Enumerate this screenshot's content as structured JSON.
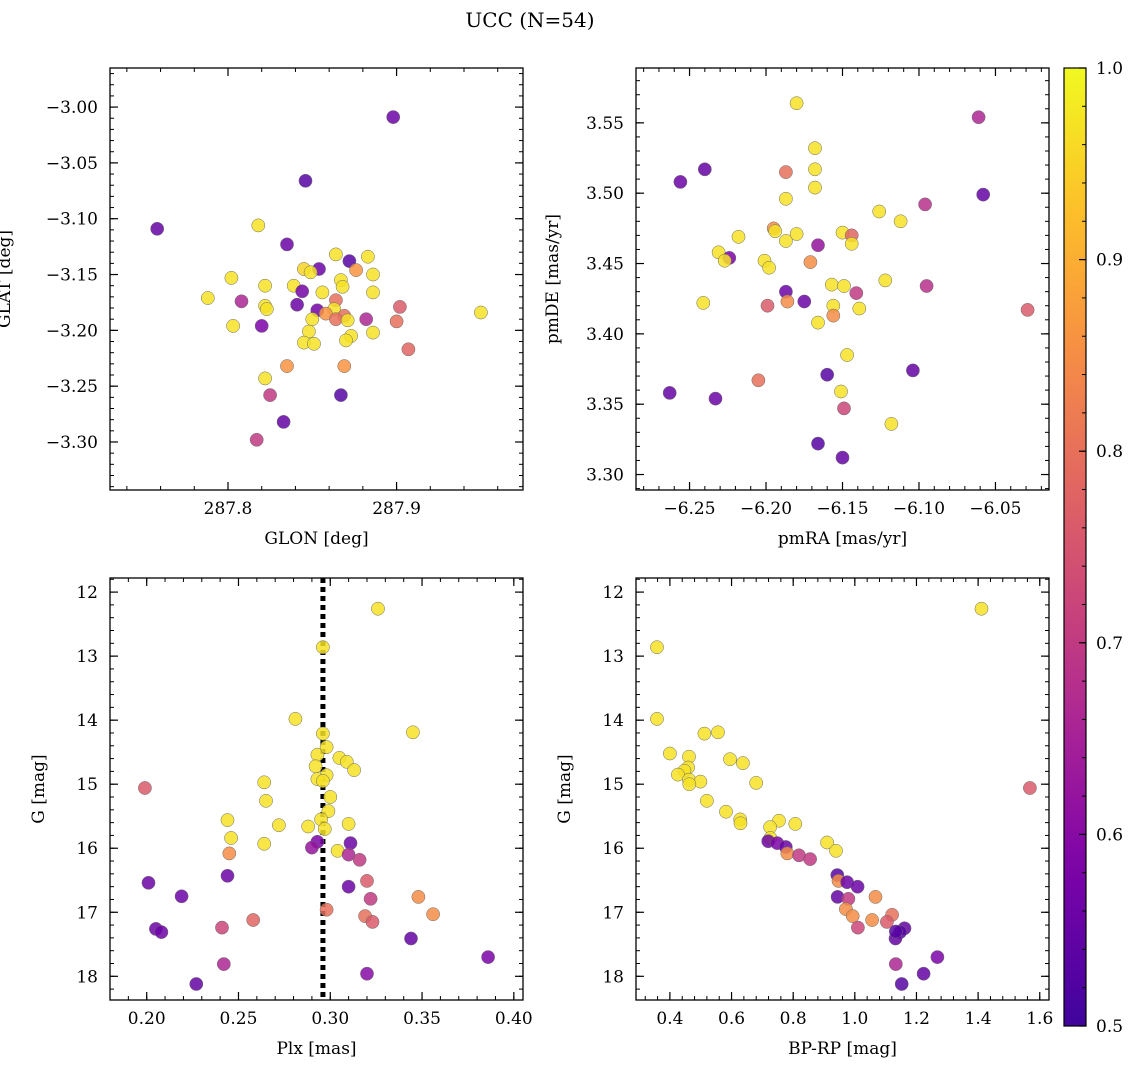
{
  "suptitle": "UCC (N=54)",
  "colormap": {
    "name": "plasma",
    "min": 0.5,
    "max": 1.0,
    "ticks": [
      "0.5",
      "0.6",
      "0.7",
      "0.8",
      "0.9",
      "1.0"
    ]
  },
  "chart_data": [
    {
      "type": "scatter",
      "xlabel": "GLON [deg]",
      "ylabel": "GLAT [deg]",
      "xlim": [
        287.73,
        287.975
      ],
      "ylim": [
        -3.343,
        -2.965
      ],
      "y_inverted": false,
      "xticks": [
        "287.8",
        "287.9"
      ],
      "xtick_values": [
        287.8,
        287.9
      ],
      "yticks": [
        "−3.00",
        "−3.05",
        "−3.10",
        "−3.15",
        "−3.20",
        "−3.25",
        "−3.30"
      ],
      "ytick_values": [
        -3.0,
        -3.05,
        -3.1,
        -3.15,
        -3.2,
        -3.25,
        -3.3
      ],
      "points": [
        [
          287.898,
          -3.009,
          0.56
        ],
        [
          287.846,
          -3.066,
          0.53
        ],
        [
          287.758,
          -3.109,
          0.55
        ],
        [
          287.818,
          -3.106,
          0.97
        ],
        [
          287.835,
          -3.123,
          0.56
        ],
        [
          287.864,
          -3.132,
          0.97
        ],
        [
          287.883,
          -3.134,
          0.97
        ],
        [
          287.872,
          -3.138,
          0.53
        ],
        [
          287.854,
          -3.145,
          0.56
        ],
        [
          287.845,
          -3.145,
          0.95
        ],
        [
          287.849,
          -3.148,
          0.97
        ],
        [
          287.886,
          -3.15,
          0.97
        ],
        [
          287.802,
          -3.153,
          0.97
        ],
        [
          287.867,
          -3.155,
          0.97
        ],
        [
          287.822,
          -3.16,
          0.97
        ],
        [
          287.839,
          -3.16,
          0.97
        ],
        [
          287.868,
          -3.161,
          0.97
        ],
        [
          287.844,
          -3.165,
          0.57
        ],
        [
          287.856,
          -3.166,
          0.97
        ],
        [
          287.886,
          -3.166,
          0.97
        ],
        [
          287.788,
          -3.171,
          0.97
        ],
        [
          287.876,
          -3.146,
          0.86
        ],
        [
          287.864,
          -3.173,
          0.8
        ],
        [
          287.808,
          -3.174,
          0.66
        ],
        [
          287.841,
          -3.177,
          0.56
        ],
        [
          287.822,
          -3.178,
          0.97
        ],
        [
          287.902,
          -3.179,
          0.76
        ],
        [
          287.863,
          -3.181,
          0.97
        ],
        [
          287.823,
          -3.181,
          0.97
        ],
        [
          287.853,
          -3.182,
          0.57
        ],
        [
          287.858,
          -3.185,
          0.86
        ],
        [
          287.95,
          -3.184,
          0.97
        ],
        [
          287.869,
          -3.187,
          0.8
        ],
        [
          287.864,
          -3.19,
          0.8
        ],
        [
          287.882,
          -3.19,
          0.66
        ],
        [
          287.871,
          -3.191,
          0.97
        ],
        [
          287.9,
          -3.192,
          0.8
        ],
        [
          287.803,
          -3.196,
          0.97
        ],
        [
          287.82,
          -3.196,
          0.58
        ],
        [
          287.848,
          -3.201,
          0.97
        ],
        [
          287.886,
          -3.202,
          0.97
        ],
        [
          287.873,
          -3.205,
          0.97
        ],
        [
          287.87,
          -3.209,
          0.97
        ],
        [
          287.845,
          -3.211,
          0.97
        ],
        [
          287.851,
          -3.212,
          0.97
        ],
        [
          287.907,
          -3.217,
          0.78
        ],
        [
          287.835,
          -3.232,
          0.86
        ],
        [
          287.869,
          -3.232,
          0.86
        ],
        [
          287.822,
          -3.243,
          0.97
        ],
        [
          287.867,
          -3.258,
          0.53
        ],
        [
          287.825,
          -3.258,
          0.7
        ],
        [
          287.833,
          -3.282,
          0.55
        ],
        [
          287.817,
          -3.298,
          0.7
        ],
        [
          287.85,
          -3.19,
          0.97
        ]
      ]
    },
    {
      "type": "scatter",
      "xlabel": "pmRA [mas/yr]",
      "ylabel": "pmDE [mas/yr]",
      "xlim": [
        -6.285,
        -6.015
      ],
      "ylim": [
        3.289,
        3.589
      ],
      "y_inverted": false,
      "xticks": [
        "−6.25",
        "−6.20",
        "−6.15",
        "−6.10",
        "−6.05"
      ],
      "xtick_values": [
        -6.25,
        -6.2,
        -6.15,
        -6.1,
        -6.05
      ],
      "yticks": [
        "3.30",
        "3.35",
        "3.40",
        "3.45",
        "3.50",
        "3.55"
      ],
      "ytick_values": [
        3.3,
        3.35,
        3.4,
        3.45,
        3.5,
        3.55
      ],
      "points": [
        [
          -6.18,
          3.564,
          0.97
        ],
        [
          -6.061,
          3.554,
          0.66
        ],
        [
          -6.168,
          3.532,
          0.97
        ],
        [
          -6.24,
          3.517,
          0.55
        ],
        [
          -6.168,
          3.517,
          0.97
        ],
        [
          -6.187,
          3.515,
          0.8
        ],
        [
          -6.256,
          3.508,
          0.56
        ],
        [
          -6.168,
          3.504,
          0.97
        ],
        [
          -6.058,
          3.499,
          0.55
        ],
        [
          -6.187,
          3.496,
          0.97
        ],
        [
          -6.096,
          3.492,
          0.68
        ],
        [
          -6.126,
          3.487,
          0.97
        ],
        [
          -6.112,
          3.48,
          0.97
        ],
        [
          -6.195,
          3.475,
          0.85
        ],
        [
          -6.194,
          3.473,
          0.97
        ],
        [
          -6.18,
          3.471,
          0.97
        ],
        [
          -6.15,
          3.472,
          0.97
        ],
        [
          -6.144,
          3.47,
          0.78
        ],
        [
          -6.218,
          3.469,
          0.97
        ],
        [
          -6.187,
          3.466,
          0.97
        ],
        [
          -6.166,
          3.463,
          0.62
        ],
        [
          -6.144,
          3.464,
          0.97
        ],
        [
          -6.231,
          3.458,
          0.97
        ],
        [
          -6.224,
          3.454,
          0.58
        ],
        [
          -6.227,
          3.452,
          0.97
        ],
        [
          -6.201,
          3.452,
          0.97
        ],
        [
          -6.198,
          3.447,
          0.97
        ],
        [
          -6.171,
          3.451,
          0.85
        ],
        [
          -6.157,
          3.435,
          0.97
        ],
        [
          -6.122,
          3.438,
          0.97
        ],
        [
          -6.149,
          3.434,
          0.97
        ],
        [
          -6.095,
          3.434,
          0.68
        ],
        [
          -6.187,
          3.43,
          0.56
        ],
        [
          -6.141,
          3.429,
          0.7
        ],
        [
          -6.175,
          3.423,
          0.56
        ],
        [
          -6.241,
          3.422,
          0.97
        ],
        [
          -6.186,
          3.423,
          0.85
        ],
        [
          -6.199,
          3.42,
          0.76
        ],
        [
          -6.156,
          3.42,
          0.97
        ],
        [
          -6.029,
          3.417,
          0.76
        ],
        [
          -6.139,
          3.418,
          0.97
        ],
        [
          -6.156,
          3.413,
          0.85
        ],
        [
          -6.166,
          3.408,
          0.97
        ],
        [
          -6.147,
          3.385,
          0.97
        ],
        [
          -6.104,
          3.374,
          0.55
        ],
        [
          -6.16,
          3.371,
          0.53
        ],
        [
          -6.205,
          3.367,
          0.8
        ],
        [
          -6.151,
          3.359,
          0.97
        ],
        [
          -6.263,
          3.358,
          0.55
        ],
        [
          -6.233,
          3.354,
          0.56
        ],
        [
          -6.149,
          3.347,
          0.72
        ],
        [
          -6.118,
          3.336,
          0.97
        ],
        [
          -6.166,
          3.322,
          0.53
        ],
        [
          -6.15,
          3.312,
          0.55
        ]
      ]
    },
    {
      "type": "scatter",
      "xlabel": "Plx [mas]",
      "ylabel": "G [mag]",
      "xlim": [
        0.18,
        0.405
      ],
      "ylim": [
        11.78,
        18.37
      ],
      "y_inverted": true,
      "xticks": [
        "0.20",
        "0.25",
        "0.30",
        "0.35",
        "0.40"
      ],
      "xtick_values": [
        0.2,
        0.25,
        0.3,
        0.35,
        0.4
      ],
      "yticks": [
        "12",
        "13",
        "14",
        "15",
        "16",
        "17",
        "18"
      ],
      "ytick_values": [
        12,
        13,
        14,
        15,
        16,
        17,
        18
      ],
      "vline": 0.296,
      "points": [
        [
          0.326,
          12.26,
          0.97
        ],
        [
          0.296,
          12.86,
          0.97
        ],
        [
          0.281,
          13.98,
          0.97
        ],
        [
          0.345,
          14.19,
          0.97
        ],
        [
          0.296,
          14.21,
          0.97
        ],
        [
          0.293,
          14.54,
          0.97
        ],
        [
          0.305,
          14.59,
          0.97
        ],
        [
          0.309,
          14.65,
          0.97
        ],
        [
          0.292,
          14.72,
          0.97
        ],
        [
          0.313,
          14.78,
          0.97
        ],
        [
          0.298,
          14.86,
          0.97
        ],
        [
          0.293,
          14.92,
          0.97
        ],
        [
          0.296,
          14.95,
          0.97
        ],
        [
          0.264,
          14.97,
          0.97
        ],
        [
          0.199,
          15.06,
          0.76
        ],
        [
          0.299,
          15.42,
          0.97
        ],
        [
          0.295,
          15.55,
          0.97
        ],
        [
          0.244,
          15.56,
          0.97
        ],
        [
          0.31,
          15.62,
          0.97
        ],
        [
          0.265,
          15.26,
          0.97
        ],
        [
          0.272,
          15.64,
          0.97
        ],
        [
          0.288,
          15.66,
          0.97
        ],
        [
          0.246,
          15.84,
          0.97
        ],
        [
          0.293,
          15.9,
          0.58
        ],
        [
          0.311,
          15.92,
          0.56
        ],
        [
          0.264,
          15.93,
          0.97
        ],
        [
          0.29,
          15.99,
          0.62
        ],
        [
          0.304,
          16.04,
          0.97
        ],
        [
          0.245,
          16.08,
          0.85
        ],
        [
          0.31,
          16.1,
          0.66
        ],
        [
          0.316,
          16.18,
          0.7
        ],
        [
          0.244,
          16.43,
          0.56
        ],
        [
          0.32,
          16.51,
          0.76
        ],
        [
          0.201,
          16.54,
          0.56
        ],
        [
          0.31,
          16.6,
          0.56
        ],
        [
          0.219,
          16.75,
          0.56
        ],
        [
          0.348,
          16.76,
          0.85
        ],
        [
          0.322,
          16.79,
          0.7
        ],
        [
          0.298,
          16.96,
          0.8
        ],
        [
          0.356,
          17.03,
          0.85
        ],
        [
          0.319,
          17.06,
          0.8
        ],
        [
          0.258,
          17.12,
          0.78
        ],
        [
          0.323,
          17.15,
          0.76
        ],
        [
          0.241,
          17.24,
          0.72
        ],
        [
          0.205,
          17.26,
          0.56
        ],
        [
          0.208,
          17.31,
          0.56
        ],
        [
          0.344,
          17.41,
          0.55
        ],
        [
          0.386,
          17.7,
          0.58
        ],
        [
          0.242,
          17.81,
          0.66
        ],
        [
          0.32,
          17.96,
          0.6
        ],
        [
          0.227,
          18.12,
          0.55
        ],
        [
          0.298,
          14.42,
          0.97
        ],
        [
          0.3,
          15.2,
          0.97
        ],
        [
          0.297,
          15.7,
          0.97
        ]
      ]
    },
    {
      "type": "scatter",
      "xlabel": "BP-RP [mag]",
      "ylabel": "G [mag]",
      "xlim": [
        0.29,
        1.63
      ],
      "ylim": [
        11.78,
        18.37
      ],
      "y_inverted": true,
      "xticks": [
        "0.4",
        "0.6",
        "0.8",
        "1.0",
        "1.2",
        "1.4",
        "1.6"
      ],
      "xtick_values": [
        0.4,
        0.6,
        0.8,
        1.0,
        1.2,
        1.4,
        1.6
      ],
      "yticks": [
        "12",
        "13",
        "14",
        "15",
        "16",
        "17",
        "18"
      ],
      "ytick_values": [
        12,
        13,
        14,
        15,
        16,
        17,
        18
      ],
      "points": [
        [
          1.411,
          12.26,
          0.97
        ],
        [
          0.358,
          12.86,
          0.97
        ],
        [
          0.358,
          13.98,
          0.97
        ],
        [
          0.556,
          14.19,
          0.97
        ],
        [
          0.512,
          14.21,
          0.97
        ],
        [
          0.4,
          14.52,
          0.97
        ],
        [
          0.462,
          14.57,
          0.97
        ],
        [
          0.595,
          14.61,
          0.97
        ],
        [
          0.637,
          14.67,
          0.97
        ],
        [
          0.459,
          14.74,
          0.97
        ],
        [
          0.447,
          14.79,
          0.97
        ],
        [
          0.426,
          14.85,
          0.97
        ],
        [
          0.462,
          14.93,
          0.97
        ],
        [
          0.499,
          14.96,
          0.97
        ],
        [
          0.68,
          14.98,
          0.97
        ],
        [
          0.463,
          15.0,
          0.97
        ],
        [
          1.568,
          15.06,
          0.76
        ],
        [
          0.52,
          15.26,
          0.97
        ],
        [
          0.582,
          15.43,
          0.97
        ],
        [
          0.628,
          15.55,
          0.97
        ],
        [
          0.754,
          15.57,
          0.97
        ],
        [
          0.629,
          15.61,
          0.97
        ],
        [
          0.807,
          15.62,
          0.97
        ],
        [
          0.725,
          15.67,
          0.97
        ],
        [
          0.726,
          15.84,
          0.97
        ],
        [
          0.719,
          15.89,
          0.56
        ],
        [
          0.748,
          15.92,
          0.58
        ],
        [
          0.91,
          15.91,
          0.97
        ],
        [
          0.776,
          15.98,
          0.56
        ],
        [
          0.939,
          16.04,
          0.97
        ],
        [
          0.781,
          16.08,
          0.85
        ],
        [
          0.819,
          16.11,
          0.7
        ],
        [
          0.855,
          16.17,
          0.7
        ],
        [
          0.943,
          16.42,
          0.53
        ],
        [
          0.947,
          16.51,
          0.85
        ],
        [
          0.975,
          16.53,
          0.56
        ],
        [
          1.009,
          16.6,
          0.56
        ],
        [
          0.944,
          16.76,
          0.55
        ],
        [
          0.979,
          16.79,
          0.7
        ],
        [
          1.067,
          16.76,
          0.85
        ],
        [
          0.971,
          16.95,
          0.85
        ],
        [
          0.993,
          17.06,
          0.85
        ],
        [
          1.056,
          17.12,
          0.85
        ],
        [
          1.121,
          17.04,
          0.8
        ],
        [
          1.104,
          17.15,
          0.76
        ],
        [
          1.01,
          17.24,
          0.72
        ],
        [
          1.161,
          17.25,
          0.55
        ],
        [
          1.147,
          17.31,
          0.53
        ],
        [
          1.132,
          17.41,
          0.55
        ],
        [
          1.268,
          17.7,
          0.58
        ],
        [
          1.133,
          17.81,
          0.66
        ],
        [
          1.223,
          17.96,
          0.55
        ],
        [
          1.152,
          18.12,
          0.53
        ],
        [
          1.133,
          17.3,
          0.53
        ]
      ]
    }
  ]
}
